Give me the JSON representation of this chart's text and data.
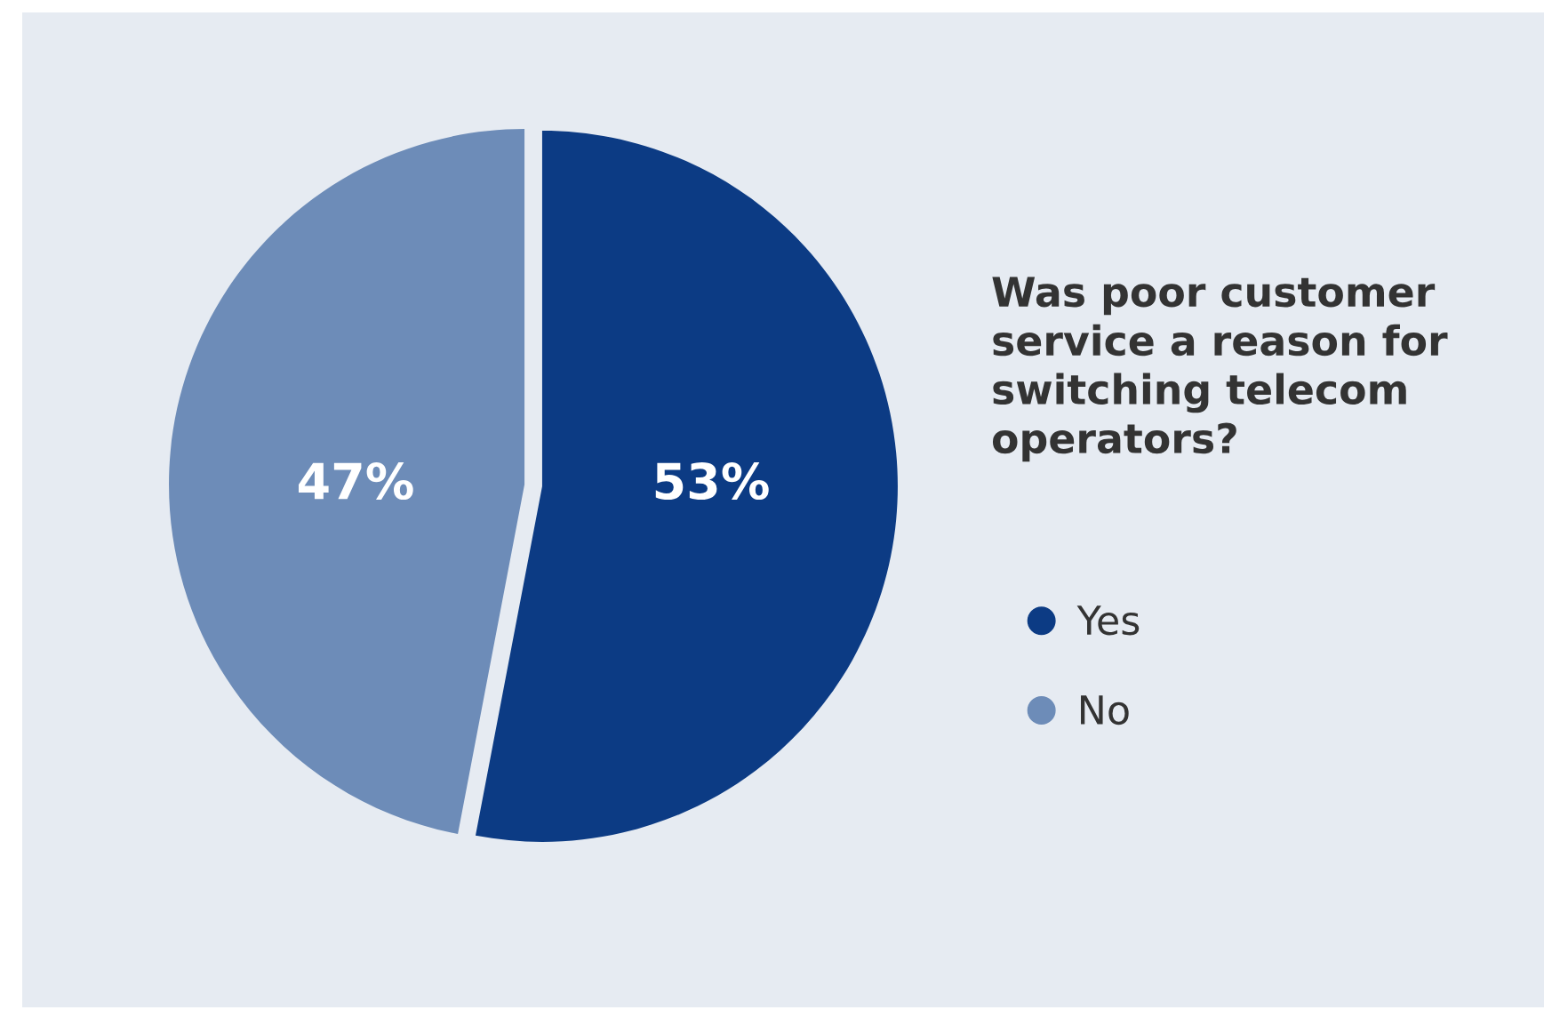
{
  "chart_data": {
    "type": "pie",
    "title": "Was poor customer service a reason for switching telecom operators?",
    "categories": [
      "Yes",
      "No"
    ],
    "values": [
      53,
      47
    ],
    "colors": [
      "#0c3b84",
      "#6d8cb8"
    ],
    "value_labels": [
      "53%",
      "47%"
    ],
    "legend": "right"
  }
}
